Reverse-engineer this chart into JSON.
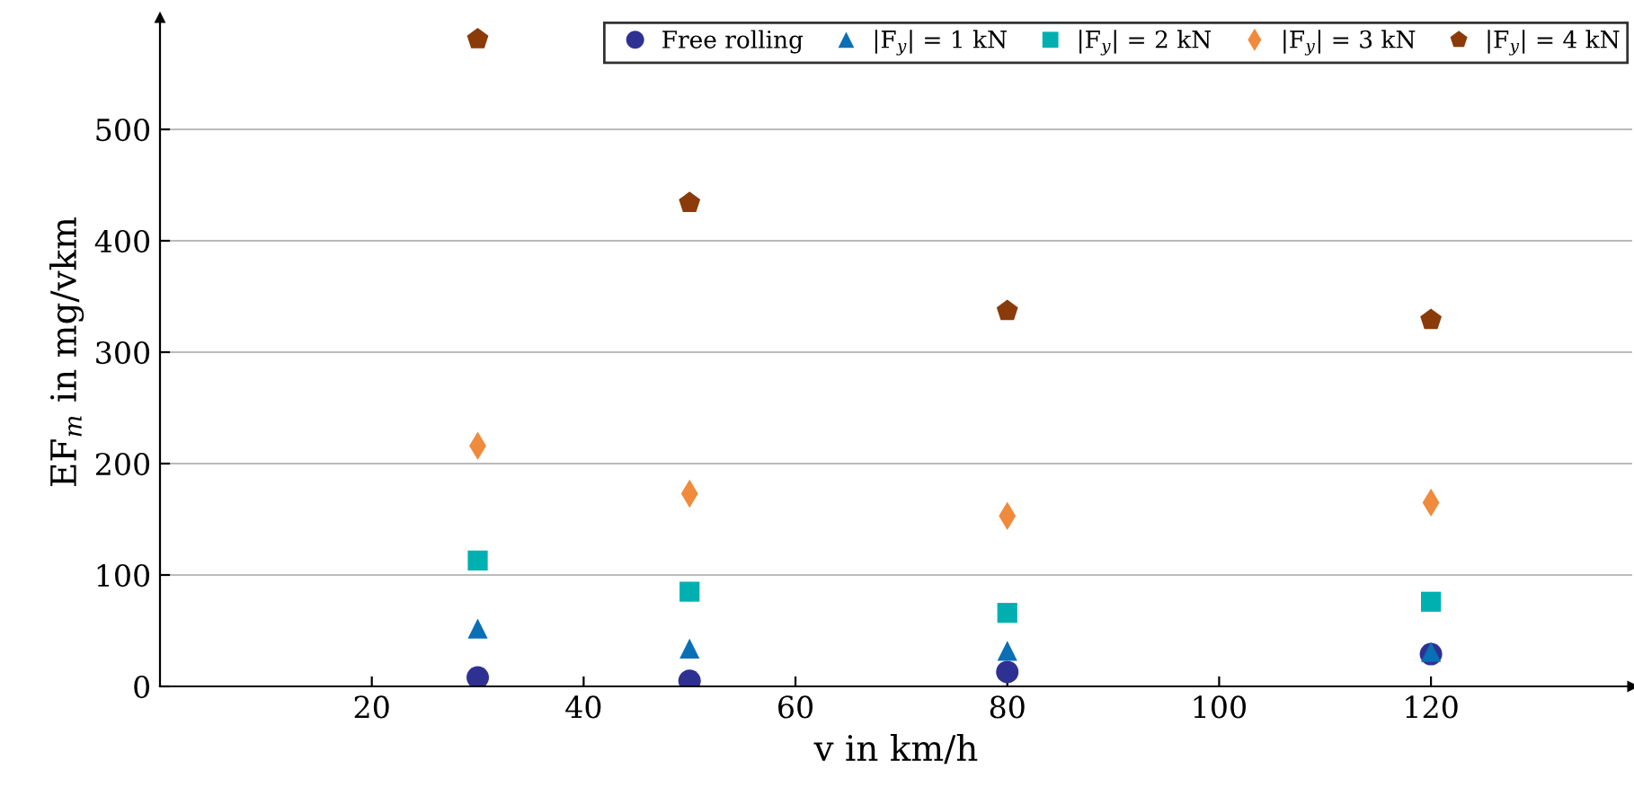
{
  "chart_data": {
    "type": "scatter",
    "xlabel": "v in km/h",
    "ylabel": "EF$_{m}$ in mg/vkm",
    "x": [
      30,
      50,
      80,
      120
    ],
    "series": [
      {
        "name": "Free rolling",
        "color": "#2e3192",
        "marker": "circle",
        "values": [
          8,
          5,
          13,
          29
        ]
      },
      {
        "name": "|F$_{y}$| = 1 kN",
        "color": "#0a6fb5",
        "marker": "triangle",
        "values": [
          52,
          34,
          32,
          31
        ]
      },
      {
        "name": "|F$_{y}$| = 2 kN",
        "color": "#00b0b0",
        "marker": "square",
        "values": [
          113,
          85,
          66,
          76
        ]
      },
      {
        "name": "|F$_{y}$| = 3 kN",
        "color": "#f08a3c",
        "marker": "diamond",
        "values": [
          216,
          173,
          153,
          165
        ]
      },
      {
        "name": "|F$_{y}$| = 4 kN",
        "color": "#8b3a0a",
        "values": [
          581,
          434,
          337,
          329
        ]
      }
    ],
    "xlim": [
      0,
      139
    ],
    "ylim": [
      0,
      600
    ],
    "xticks": [
      20,
      40,
      60,
      80,
      100,
      120
    ],
    "yticks": [
      0,
      100,
      200,
      300,
      400,
      500
    ],
    "grid": "y",
    "legend": "top right"
  }
}
